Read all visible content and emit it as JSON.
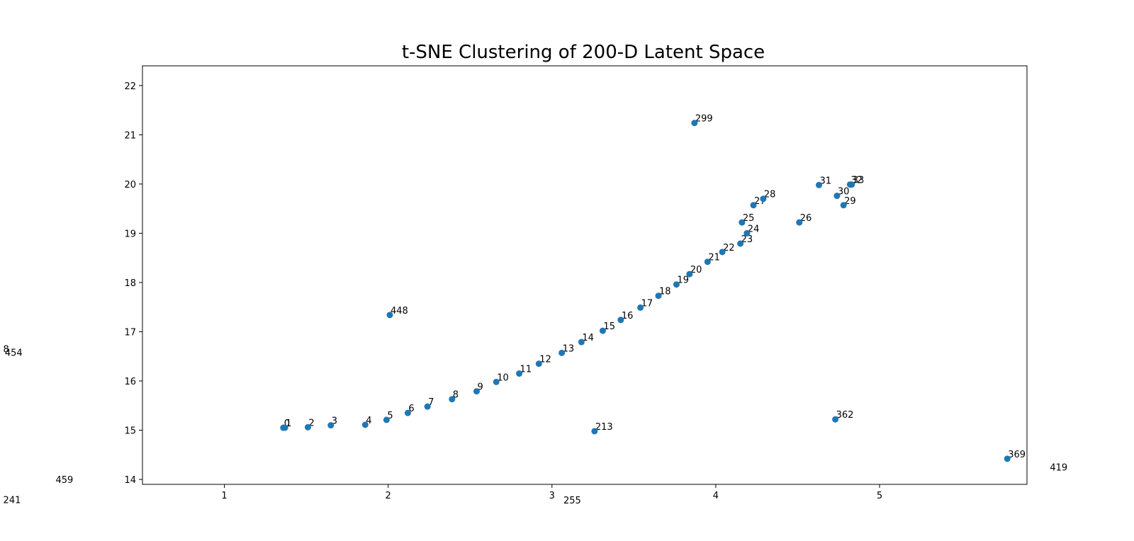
{
  "chart_data": {
    "type": "scatter",
    "title": "t-SNE Clustering of 200-D Latent Space",
    "xlabel": "",
    "ylabel": "",
    "xlim": [
      0.5,
      5.9
    ],
    "ylim": [
      13.9,
      22.4
    ],
    "xticks": [
      1,
      2,
      3,
      4,
      5
    ],
    "yticks": [
      14,
      15,
      16,
      17,
      18,
      19,
      20,
      21,
      22
    ],
    "grid": false,
    "point_color": "#1f77b4",
    "points": [
      {
        "label": "0",
        "x": 1.36,
        "y": 15.05
      },
      {
        "label": "1",
        "x": 1.37,
        "y": 15.05
      },
      {
        "label": "2",
        "x": 1.51,
        "y": 15.06
      },
      {
        "label": "3",
        "x": 1.65,
        "y": 15.1
      },
      {
        "label": "4",
        "x": 1.86,
        "y": 15.11
      },
      {
        "label": "5",
        "x": 1.99,
        "y": 15.21
      },
      {
        "label": "6",
        "x": 2.12,
        "y": 15.35
      },
      {
        "label": "7",
        "x": 2.24,
        "y": 15.48
      },
      {
        "label": "8",
        "x": 2.39,
        "y": 15.63
      },
      {
        "label": "9",
        "x": 2.54,
        "y": 15.79
      },
      {
        "label": "10",
        "x": 2.66,
        "y": 15.98
      },
      {
        "label": "11",
        "x": 2.8,
        "y": 16.15
      },
      {
        "label": "12",
        "x": 2.92,
        "y": 16.35
      },
      {
        "label": "13",
        "x": 3.06,
        "y": 16.57
      },
      {
        "label": "14",
        "x": 3.18,
        "y": 16.79
      },
      {
        "label": "15",
        "x": 3.31,
        "y": 17.02
      },
      {
        "label": "16",
        "x": 3.42,
        "y": 17.24
      },
      {
        "label": "17",
        "x": 3.54,
        "y": 17.49
      },
      {
        "label": "18",
        "x": 3.65,
        "y": 17.73
      },
      {
        "label": "19",
        "x": 3.76,
        "y": 17.96
      },
      {
        "label": "20",
        "x": 3.84,
        "y": 18.17
      },
      {
        "label": "21",
        "x": 3.95,
        "y": 18.42
      },
      {
        "label": "22",
        "x": 4.04,
        "y": 18.62
      },
      {
        "label": "23",
        "x": 4.15,
        "y": 18.79
      },
      {
        "label": "24",
        "x": 4.19,
        "y": 19.0
      },
      {
        "label": "25",
        "x": 4.16,
        "y": 19.22
      },
      {
        "label": "26",
        "x": 4.51,
        "y": 19.22
      },
      {
        "label": "27",
        "x": 4.23,
        "y": 19.57
      },
      {
        "label": "28",
        "x": 4.29,
        "y": 19.7
      },
      {
        "label": "29",
        "x": 4.78,
        "y": 19.57
      },
      {
        "label": "30",
        "x": 4.74,
        "y": 19.76
      },
      {
        "label": "31",
        "x": 4.63,
        "y": 19.98
      },
      {
        "label": "32",
        "x": 4.82,
        "y": 19.99
      },
      {
        "label": "33",
        "x": 4.83,
        "y": 19.99
      },
      {
        "label": "213",
        "x": 3.26,
        "y": 14.98
      },
      {
        "label": "299",
        "x": 3.87,
        "y": 21.24
      },
      {
        "label": "362",
        "x": 4.73,
        "y": 15.22
      },
      {
        "label": "369",
        "x": 5.78,
        "y": 14.42
      },
      {
        "label": "448",
        "x": 2.01,
        "y": 17.34
      }
    ],
    "offscreen_labels": [
      {
        "label": "8",
        "x": -0.35,
        "y": 16.58
      },
      {
        "label": "454",
        "x": -0.34,
        "y": 16.51
      },
      {
        "label": "459",
        "x": -0.03,
        "y": 13.93
      },
      {
        "label": "241",
        "x": -0.35,
        "y": 13.52
      },
      {
        "label": "255",
        "x": 3.07,
        "y": 13.51
      },
      {
        "label": "419",
        "x": 6.04,
        "y": 14.18
      }
    ]
  }
}
